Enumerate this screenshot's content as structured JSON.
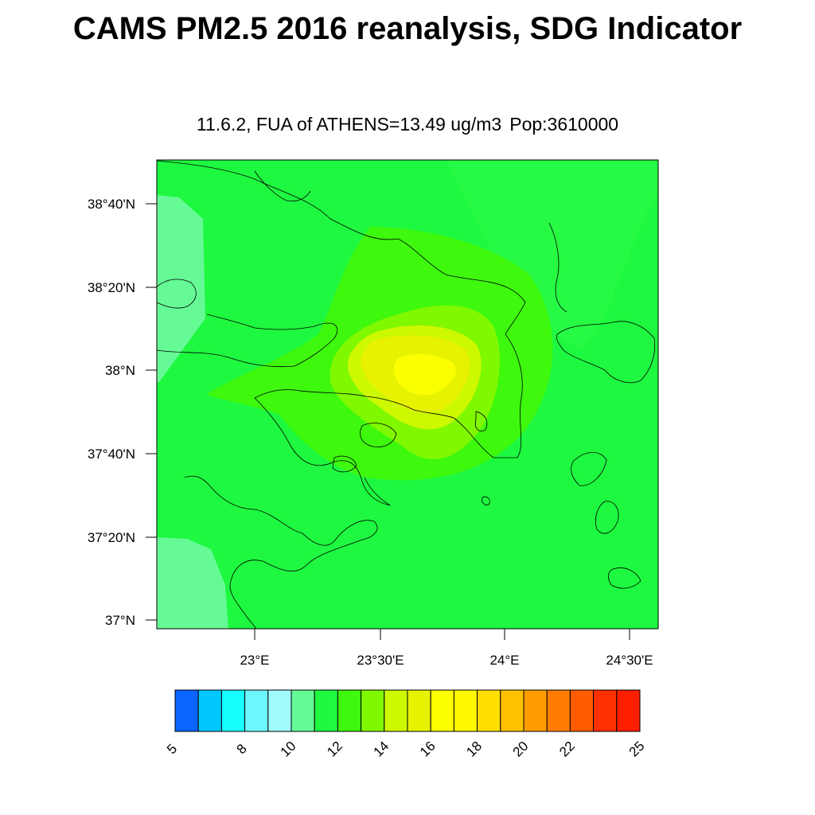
{
  "title": "CAMS PM2.5 2016 reanalysis, SDG Indicator",
  "subtitle": {
    "indicator": "11.6.2, FUA of ATHENS=13.49 ug/m3",
    "population": "Pop:3610000"
  },
  "map": {
    "y_tick_labels": [
      "38°40'N",
      "38°20'N",
      "38°N",
      "37°40'N",
      "37°20'N",
      "37°N"
    ],
    "x_tick_labels": [
      "23°E",
      "23°30'E",
      "24°E",
      "24°30'E"
    ]
  },
  "colorbar": {
    "colors": [
      "#0a64ff",
      "#00c8ff",
      "#18ffff",
      "#6ef6ff",
      "#a0fcfc",
      "#64fa96",
      "#1efa40",
      "#40f80e",
      "#80f800",
      "#ccf800",
      "#e6f200",
      "#fcff00",
      "#fff800",
      "#ffde00",
      "#ffc000",
      "#ff9c00",
      "#ff7c00",
      "#ff5c00",
      "#ff3000",
      "#ff1e00"
    ],
    "labels": [
      "5",
      "8",
      "10",
      "12",
      "14",
      "16",
      "18",
      "20",
      "22",
      "25"
    ]
  },
  "chart_data": {
    "type": "heatmap",
    "title": "CAMS PM2.5 2016 reanalysis, SDG Indicator",
    "subtitle": "11.6.2, FUA of ATHENS=13.49 ug/m3 Pop:3610000",
    "x_range": [
      "22°53'E",
      "24°33'E"
    ],
    "y_range": [
      "36°57'N",
      "38°50'N"
    ],
    "colorbar_range": [
      5,
      25
    ],
    "colorbar_labels": [
      5,
      8,
      10,
      12,
      14,
      16,
      18,
      20,
      22,
      25
    ],
    "peak_value_range": [
      16,
      17
    ],
    "peak_location": "near Athens, approx 37°58'N 23°42'E",
    "background_value_range": [
      11,
      12
    ],
    "grid": false
  }
}
